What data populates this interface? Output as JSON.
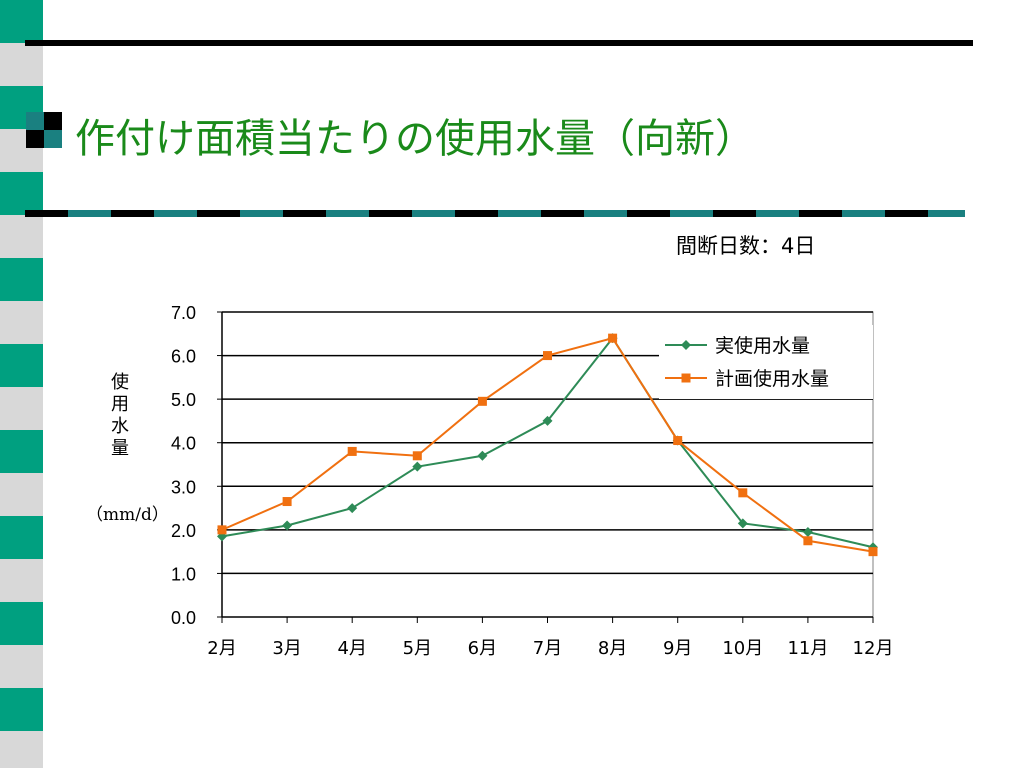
{
  "slide": {
    "title": "作付け面積当たりの使用水量（向新）",
    "subtitle": "間断日数：4日"
  },
  "colors": {
    "stripe_green": "#00a080",
    "stripe_gray": "#d8d8d8",
    "title_green": "#1a8a1a",
    "series_actual": "#2e8b57",
    "series_plan": "#f07010"
  },
  "chart_data": {
    "type": "line",
    "ylabel": "使用水量",
    "ylabel_unit": "（mm/d）",
    "ylim": [
      0,
      7
    ],
    "yticks": [
      "0.0",
      "1.0",
      "2.0",
      "3.0",
      "4.0",
      "5.0",
      "6.0",
      "7.0"
    ],
    "grid": true,
    "legend_position": "top-right",
    "x": [
      2,
      3,
      4,
      5,
      6,
      7,
      8,
      9,
      10,
      11,
      12
    ],
    "categories": [
      "2月",
      "3月",
      "4月",
      "5月",
      "6月",
      "7月",
      "8月",
      "9月",
      "10月",
      "11月",
      "12月"
    ],
    "series": [
      {
        "name": "実使用水量",
        "marker": "diamond",
        "color": "#2e8b57",
        "values": [
          1.85,
          2.1,
          2.5,
          3.45,
          3.7,
          4.5,
          6.4,
          4.05,
          2.15,
          1.95,
          1.6
        ]
      },
      {
        "name": "計画使用水量",
        "marker": "square",
        "color": "#f07010",
        "values": [
          2.0,
          2.65,
          3.8,
          3.7,
          4.95,
          6.0,
          6.4,
          4.05,
          2.85,
          1.75,
          1.5
        ]
      }
    ]
  }
}
